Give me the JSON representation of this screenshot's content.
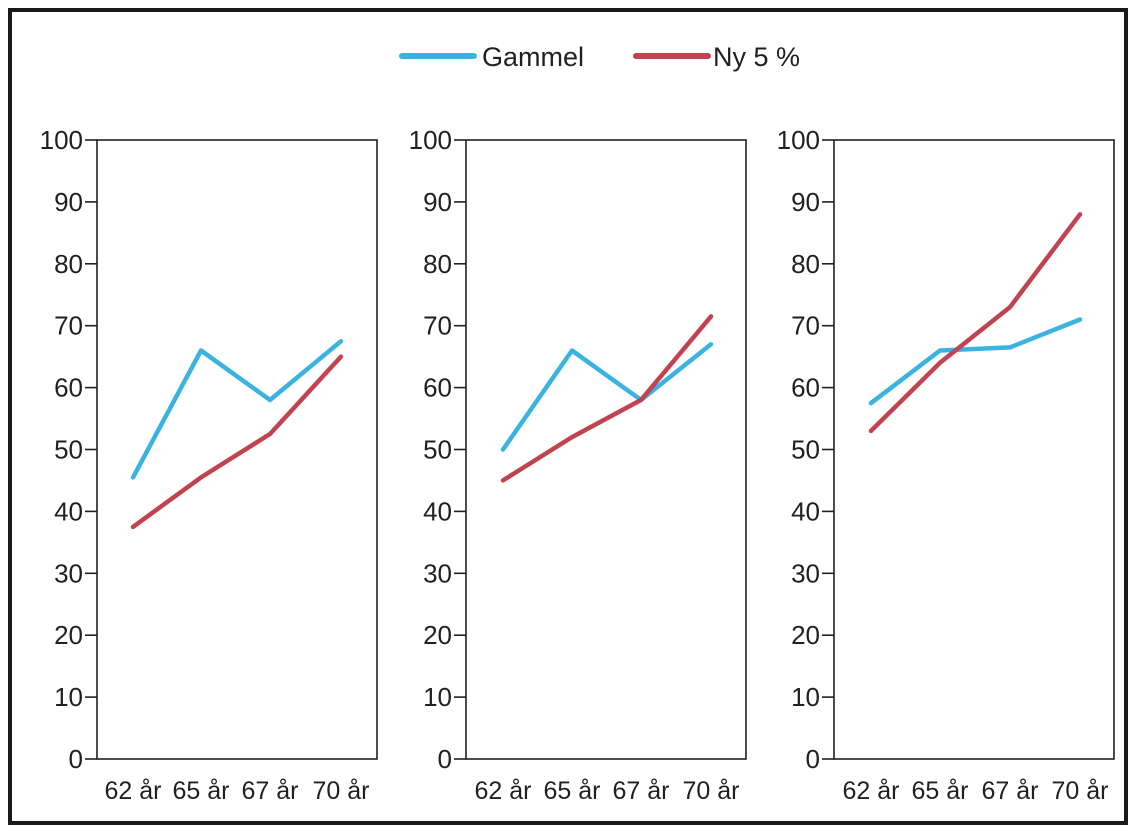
{
  "legend": {
    "items": [
      {
        "name": "Gammel",
        "color": "#3bb3e0"
      },
      {
        "name": "Ny 5 %",
        "color": "#c1434f"
      }
    ],
    "placement": "top-center"
  },
  "chart_data": [
    {
      "type": "line",
      "categories": [
        "62 år",
        "65 år",
        "67 år",
        "70 år"
      ],
      "ylim": [
        0,
        100
      ],
      "yticks": [
        "0",
        "10",
        "20",
        "30",
        "40",
        "50",
        "60",
        "70",
        "80",
        "90",
        "100"
      ],
      "grid": false,
      "series": [
        {
          "name": "Gammel",
          "color": "#3bb3e0",
          "values": [
            45.5,
            66,
            58,
            67.5
          ]
        },
        {
          "name": "Ny 5 %",
          "color": "#c1434f",
          "values": [
            37.5,
            45.5,
            52.5,
            65
          ]
        }
      ]
    },
    {
      "type": "line",
      "categories": [
        "62 år",
        "65 år",
        "67 år",
        "70 år"
      ],
      "ylim": [
        0,
        100
      ],
      "yticks": [
        "0",
        "10",
        "20",
        "30",
        "40",
        "50",
        "60",
        "70",
        "80",
        "90",
        "100"
      ],
      "grid": false,
      "series": [
        {
          "name": "Gammel",
          "color": "#3bb3e0",
          "values": [
            50,
            66,
            58,
            67
          ]
        },
        {
          "name": "Ny 5 %",
          "color": "#c1434f",
          "values": [
            45,
            52,
            58,
            71.5
          ]
        }
      ]
    },
    {
      "type": "line",
      "categories": [
        "62 år",
        "65 år",
        "67 år",
        "70 år"
      ],
      "ylim": [
        0,
        100
      ],
      "yticks": [
        "0",
        "10",
        "20",
        "30",
        "40",
        "50",
        "60",
        "70",
        "80",
        "90",
        "100"
      ],
      "grid": false,
      "series": [
        {
          "name": "Gammel",
          "color": "#3bb3e0",
          "values": [
            57.5,
            66,
            66.5,
            71
          ]
        },
        {
          "name": "Ny 5 %",
          "color": "#c1434f",
          "values": [
            53,
            64,
            73,
            88
          ]
        }
      ]
    }
  ]
}
